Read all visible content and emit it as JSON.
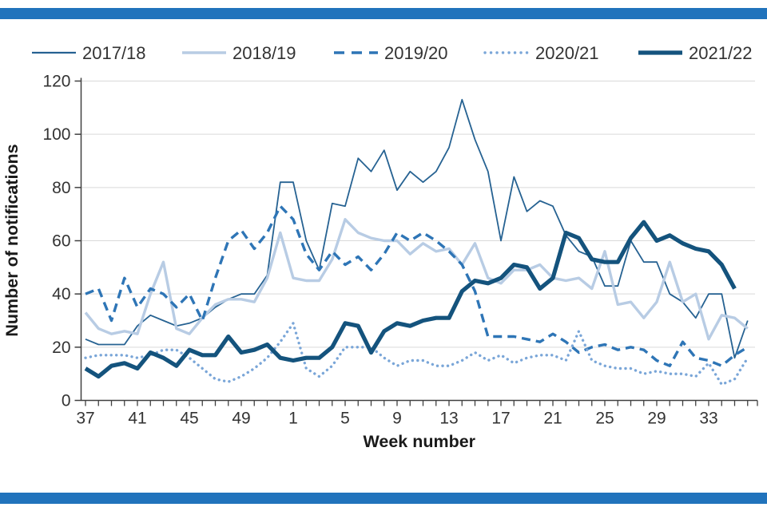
{
  "page": {
    "rule_color": "#2173bc",
    "background": "#ffffff"
  },
  "chart_data": {
    "type": "line",
    "title": "",
    "xlabel": "Week number",
    "ylabel": "Number of notifications",
    "ylim": [
      0,
      120
    ],
    "y_ticks": [
      0,
      20,
      40,
      60,
      80,
      100,
      120
    ],
    "x_tick_labels": [
      "37",
      "41",
      "45",
      "49",
      "1",
      "5",
      "9",
      "13",
      "17",
      "21",
      "25",
      "29",
      "33"
    ],
    "x_tick_step": 4,
    "grid": "horizontal",
    "legend_position": "top",
    "axis_color": "#404040",
    "grid_color": "#d9d9d9",
    "label_color": "#333333",
    "categories": [
      "37",
      "38",
      "39",
      "40",
      "41",
      "42",
      "43",
      "44",
      "45",
      "46",
      "47",
      "48",
      "49",
      "50",
      "51",
      "52",
      "1",
      "2",
      "3",
      "4",
      "5",
      "6",
      "7",
      "8",
      "9",
      "10",
      "11",
      "12",
      "13",
      "14",
      "15",
      "16",
      "17",
      "18",
      "19",
      "20",
      "21",
      "22",
      "23",
      "24",
      "25",
      "26",
      "27",
      "28",
      "29",
      "30",
      "31",
      "32",
      "33",
      "34",
      "35",
      "36"
    ],
    "series": [
      {
        "name": "2017/18",
        "color": "#266292",
        "style": "solid-thin",
        "values": [
          23,
          21,
          21,
          21,
          28,
          32,
          30,
          28,
          29,
          31,
          35,
          38,
          40,
          40,
          47,
          82,
          82,
          60,
          49,
          74,
          73,
          91,
          86,
          94,
          79,
          86,
          82,
          86,
          95,
          113,
          98,
          86,
          60,
          84,
          71,
          75,
          73,
          62,
          56,
          54,
          43,
          43,
          60,
          52,
          52,
          40,
          37,
          31,
          40,
          40,
          16,
          30
        ]
      },
      {
        "name": "2018/19",
        "color": "#b8cce4",
        "style": "solid",
        "values": [
          33,
          27,
          25,
          26,
          25,
          40,
          52,
          27,
          25,
          31,
          36,
          38,
          38,
          37,
          46,
          63,
          46,
          45,
          45,
          53,
          68,
          63,
          61,
          60,
          60,
          55,
          59,
          56,
          57,
          51,
          59,
          46,
          44,
          49,
          49,
          51,
          46,
          45,
          46,
          42,
          56,
          36,
          37,
          31,
          37,
          52,
          37,
          40,
          23,
          32,
          31,
          27
        ]
      },
      {
        "name": "2019/20",
        "color": "#2e75b6",
        "style": "dashed",
        "values": [
          40,
          42,
          30,
          46,
          35,
          42,
          40,
          35,
          40,
          30,
          46,
          60,
          64,
          57,
          63,
          73,
          68,
          55,
          49,
          56,
          51,
          54,
          49,
          55,
          63,
          60,
          63,
          60,
          56,
          51,
          41,
          24,
          24,
          24,
          23,
          22,
          25,
          22,
          18,
          20,
          21,
          19,
          20,
          19,
          15,
          13,
          22,
          16,
          15,
          13,
          17,
          20
        ]
      },
      {
        "name": "2020/21",
        "color": "#7aa6d8",
        "style": "dotted",
        "values": [
          16,
          17,
          17,
          17,
          16,
          17,
          19,
          19,
          16,
          12,
          8,
          7,
          9,
          12,
          16,
          22,
          29,
          12,
          9,
          13,
          20,
          20,
          20,
          16,
          13,
          15,
          15,
          13,
          13,
          15,
          18,
          15,
          17,
          14,
          16,
          17,
          17,
          15,
          26,
          15,
          13,
          12,
          12,
          10,
          11,
          10,
          10,
          9,
          14,
          6,
          8,
          16
        ]
      },
      {
        "name": "2021/22",
        "color": "#14537d",
        "style": "solid-thick",
        "values": [
          12,
          9,
          13,
          14,
          12,
          18,
          16,
          13,
          19,
          17,
          17,
          24,
          18,
          19,
          21,
          16,
          15,
          16,
          16,
          20,
          29,
          28,
          18,
          26,
          29,
          28,
          30,
          31,
          31,
          41,
          45,
          44,
          46,
          51,
          50,
          42,
          46,
          63,
          61,
          53,
          52,
          52,
          61,
          67,
          60,
          62,
          59,
          57,
          56,
          51,
          42,
          null
        ]
      }
    ]
  }
}
